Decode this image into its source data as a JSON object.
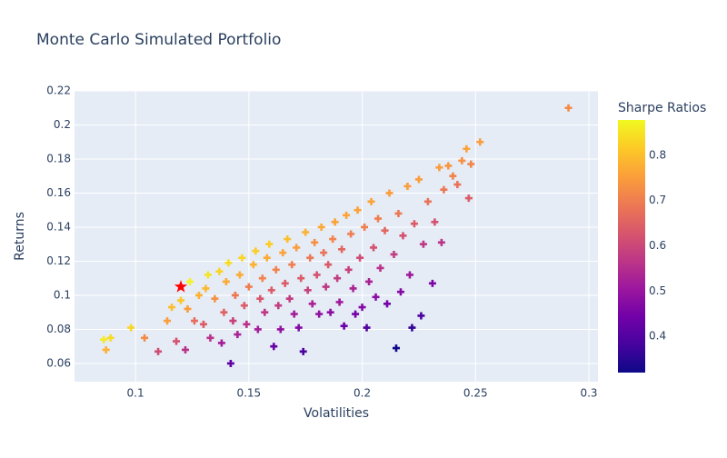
{
  "chart_data": {
    "type": "scatter",
    "title": "Monte Carlo Simulated Portfolio",
    "xlabel": "Volatilities",
    "ylabel": "Returns",
    "xlim": [
      0.0731,
      0.304
    ],
    "xticks": [
      0.1,
      0.15,
      0.2,
      0.25,
      0.3
    ],
    "ylim": [
      0.0493,
      0.22
    ],
    "yticks": [
      0.06,
      0.08,
      0.1,
      0.12,
      0.14,
      0.16,
      0.18,
      0.2,
      0.22
    ],
    "grid": true,
    "x": [
      0.086,
      0.087,
      0.089,
      0.098,
      0.104,
      0.11,
      0.114,
      0.116,
      0.118,
      0.12,
      0.122,
      0.123,
      0.124,
      0.126,
      0.128,
      0.13,
      0.131,
      0.132,
      0.133,
      0.135,
      0.137,
      0.138,
      0.139,
      0.14,
      0.141,
      0.142,
      0.143,
      0.144,
      0.145,
      0.146,
      0.147,
      0.148,
      0.149,
      0.15,
      0.152,
      0.153,
      0.154,
      0.155,
      0.156,
      0.157,
      0.158,
      0.159,
      0.16,
      0.161,
      0.162,
      0.163,
      0.164,
      0.165,
      0.166,
      0.167,
      0.168,
      0.169,
      0.17,
      0.171,
      0.172,
      0.173,
      0.174,
      0.175,
      0.176,
      0.177,
      0.178,
      0.179,
      0.18,
      0.181,
      0.182,
      0.183,
      0.184,
      0.185,
      0.186,
      0.187,
      0.188,
      0.189,
      0.19,
      0.191,
      0.192,
      0.193,
      0.194,
      0.195,
      0.196,
      0.197,
      0.198,
      0.199,
      0.2,
      0.201,
      0.202,
      0.203,
      0.204,
      0.205,
      0.206,
      0.207,
      0.208,
      0.21,
      0.211,
      0.212,
      0.214,
      0.215,
      0.216,
      0.217,
      0.218,
      0.22,
      0.221,
      0.222,
      0.223,
      0.225,
      0.226,
      0.227,
      0.229,
      0.231,
      0.232,
      0.234,
      0.235,
      0.236,
      0.238,
      0.24,
      0.242,
      0.244,
      0.246,
      0.247,
      0.248,
      0.252,
      0.291
    ],
    "y": [
      0.074,
      0.068,
      0.075,
      0.081,
      0.075,
      0.067,
      0.085,
      0.093,
      0.073,
      0.097,
      0.068,
      0.092,
      0.108,
      0.085,
      0.1,
      0.083,
      0.104,
      0.112,
      0.075,
      0.098,
      0.114,
      0.072,
      0.09,
      0.108,
      0.119,
      0.06,
      0.085,
      0.1,
      0.077,
      0.112,
      0.122,
      0.094,
      0.083,
      0.105,
      0.118,
      0.126,
      0.08,
      0.098,
      0.11,
      0.09,
      0.122,
      0.13,
      0.103,
      0.07,
      0.115,
      0.094,
      0.08,
      0.125,
      0.107,
      0.133,
      0.098,
      0.118,
      0.089,
      0.128,
      0.081,
      0.11,
      0.067,
      0.137,
      0.103,
      0.122,
      0.095,
      0.131,
      0.112,
      0.089,
      0.14,
      0.125,
      0.105,
      0.118,
      0.09,
      0.133,
      0.143,
      0.11,
      0.096,
      0.127,
      0.082,
      0.147,
      0.115,
      0.136,
      0.104,
      0.089,
      0.15,
      0.122,
      0.093,
      0.14,
      0.081,
      0.108,
      0.155,
      0.128,
      0.099,
      0.145,
      0.116,
      0.138,
      0.095,
      0.16,
      0.124,
      0.069,
      0.148,
      0.102,
      0.135,
      0.164,
      0.112,
      0.081,
      0.142,
      0.168,
      0.088,
      0.13,
      0.155,
      0.107,
      0.143,
      0.175,
      0.131,
      0.162,
      0.176,
      0.17,
      0.165,
      0.179,
      0.186,
      0.157,
      0.177,
      0.19,
      0.21
    ],
    "sharpe": [
      0.86,
      0.78,
      0.84,
      0.83,
      0.72,
      0.61,
      0.75,
      0.8,
      0.62,
      0.81,
      0.56,
      0.75,
      0.87,
      0.67,
      0.78,
      0.64,
      0.79,
      0.85,
      0.56,
      0.73,
      0.83,
      0.52,
      0.65,
      0.77,
      0.84,
      0.42,
      0.59,
      0.69,
      0.53,
      0.77,
      0.83,
      0.64,
      0.56,
      0.7,
      0.78,
      0.82,
      0.52,
      0.63,
      0.71,
      0.57,
      0.77,
      0.82,
      0.64,
      0.43,
      0.71,
      0.58,
      0.49,
      0.76,
      0.64,
      0.8,
      0.58,
      0.7,
      0.52,
      0.75,
      0.47,
      0.64,
      0.39,
      0.78,
      0.59,
      0.69,
      0.53,
      0.73,
      0.62,
      0.49,
      0.77,
      0.68,
      0.57,
      0.64,
      0.48,
      0.71,
      0.76,
      0.58,
      0.51,
      0.66,
      0.43,
      0.76,
      0.59,
      0.7,
      0.53,
      0.45,
      0.76,
      0.61,
      0.47,
      0.7,
      0.4,
      0.53,
      0.76,
      0.62,
      0.48,
      0.7,
      0.56,
      0.66,
      0.45,
      0.75,
      0.58,
      0.32,
      0.69,
      0.47,
      0.62,
      0.75,
      0.51,
      0.36,
      0.64,
      0.75,
      0.39,
      0.57,
      0.68,
      0.46,
      0.62,
      0.75,
      0.56,
      0.69,
      0.74,
      0.71,
      0.68,
      0.73,
      0.76,
      0.64,
      0.71,
      0.75,
      0.72
    ],
    "colorscale": [
      "#0d0887",
      "#46039f",
      "#7201a8",
      "#9c179e",
      "#bd3786",
      "#d8576b",
      "#ed7953",
      "#fb9f3a",
      "#fdca26",
      "#f0f921"
    ],
    "colorbar": {
      "title": "Sharpe Ratios",
      "lim": [
        0.32,
        0.878
      ],
      "ticks": [
        0.4,
        0.5,
        0.6,
        0.7,
        0.8
      ]
    },
    "highlight": {
      "x": 0.12,
      "y": 0.105,
      "color": "#ff0000"
    }
  }
}
